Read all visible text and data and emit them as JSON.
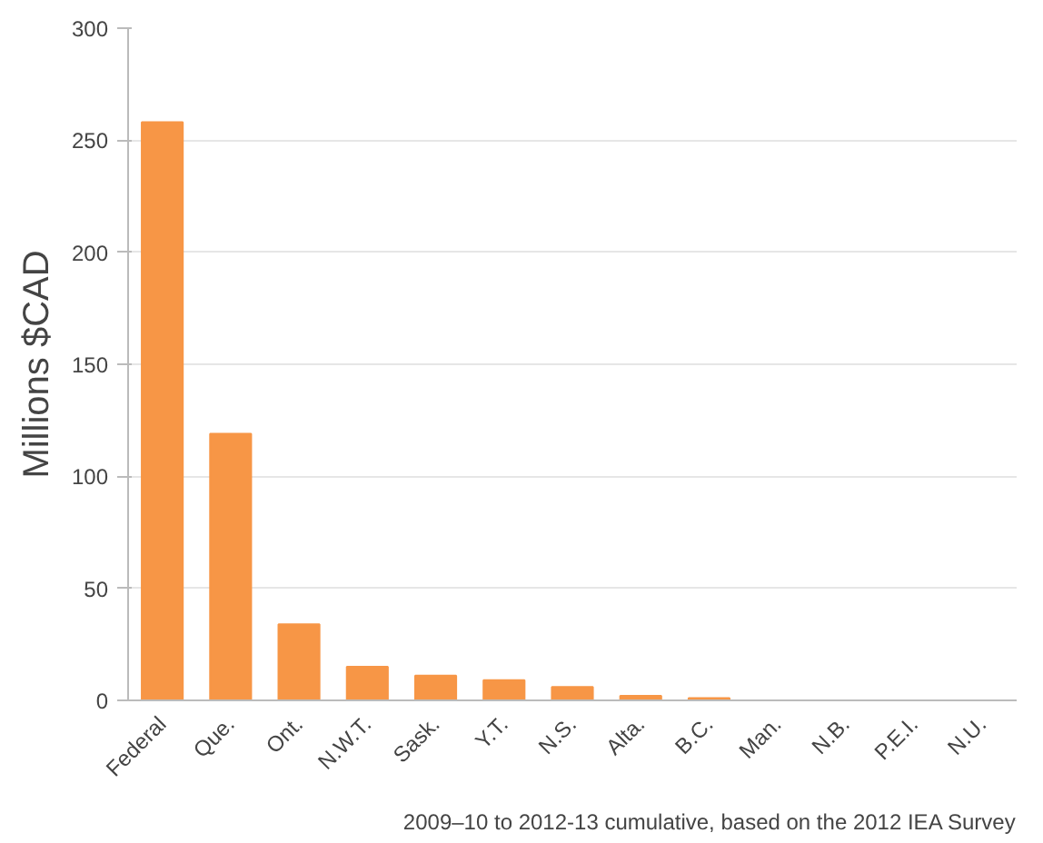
{
  "chart_data": {
    "type": "bar",
    "ylabel": "Millions $CAD",
    "categories": [
      "Federal",
      "Que.",
      "Ont.",
      "N.W.T.",
      "Sask.",
      "Y.T.",
      "N.S.",
      "Alta.",
      "B.C.",
      "Man.",
      "N.B.",
      "P.E.I.",
      "N.U."
    ],
    "values": [
      258,
      119,
      34,
      15,
      11,
      9,
      6,
      2,
      1,
      0,
      0,
      0,
      0
    ],
    "color": "#f79646",
    "ylim": [
      0,
      300
    ],
    "yticks": [
      0,
      50,
      100,
      150,
      200,
      250,
      300
    ],
    "grid": "y",
    "annotations": [
      "2009–10 to 2012-13 cumulative, based on the 2012 IEA Survey"
    ]
  }
}
